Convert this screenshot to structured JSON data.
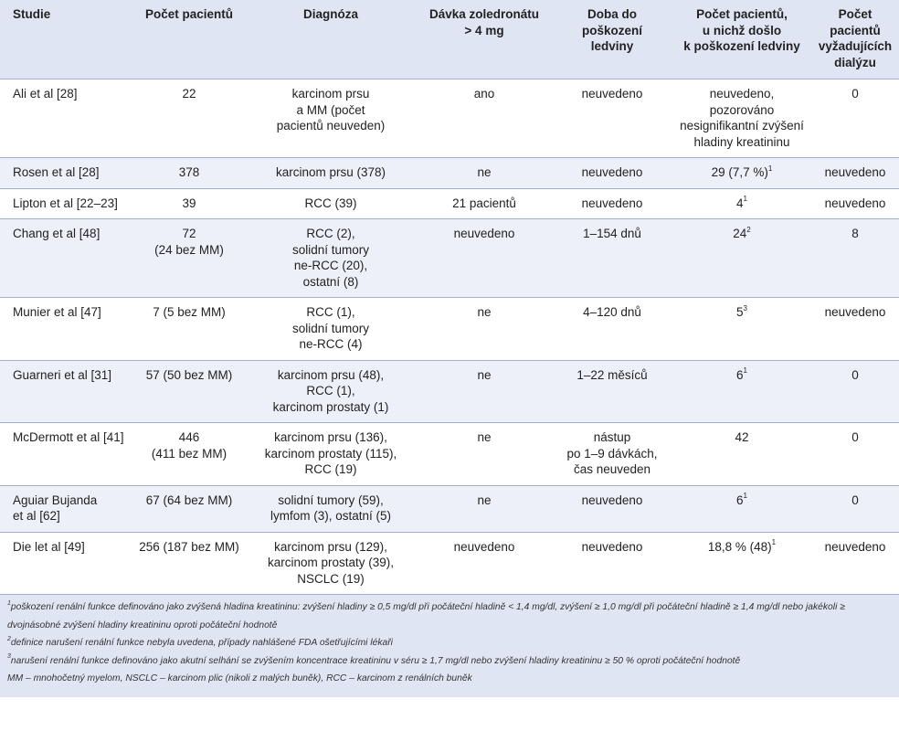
{
  "headers": [
    "Studie",
    "Počet pacientů",
    "Diagnóza",
    "Dávka zoledronátu\n> 4 mg",
    "Doba do\npoškození\nledviny",
    "Počet pacientů,\nu nichž došlo\nk poškození ledviny",
    "Počet pacientů\nvyžadujících\ndialýzu"
  ],
  "rows": [
    {
      "studie": "Ali et al [28]",
      "pocet": "22",
      "diagnoza": "karcinom prsu\na MM (počet\npacientů neuveden)",
      "davka": "ano",
      "doba": "neuvedeno",
      "poskozeni": "neuvedeno, pozorováno\nnesignifikantní zvýšení\nhladiny kreatininu",
      "poskozeni_sup": "",
      "dialyza": "0"
    },
    {
      "studie": "Rosen et al [28]",
      "pocet": "378",
      "diagnoza": "karcinom prsu (378)",
      "davka": "ne",
      "doba": "neuvedeno",
      "poskozeni": "29 (7,7 %)",
      "poskozeni_sup": "1",
      "dialyza": "neuvedeno"
    },
    {
      "studie": "Lipton et al [22–23]",
      "pocet": "39",
      "diagnoza": "RCC (39)",
      "davka": "21 pacientů",
      "doba": "neuvedeno",
      "poskozeni": "4",
      "poskozeni_sup": "1",
      "dialyza": "neuvedeno"
    },
    {
      "studie": "Chang et al [48]",
      "pocet": "72\n(24 bez MM)",
      "diagnoza": "RCC (2),\nsolidní tumory\nne-RCC (20),\nostatní  (8)",
      "davka": "neuvedeno",
      "doba": "1–154 dnů",
      "poskozeni": "24",
      "poskozeni_sup": "2",
      "dialyza": "8"
    },
    {
      "studie": "Munier et al [47]",
      "pocet": "7 (5 bez MM)",
      "diagnoza": "RCC (1),\nsolidní tumory\nne-RCC (4)",
      "davka": "ne",
      "doba": "4–120 dnů",
      "poskozeni": "5",
      "poskozeni_sup": "3",
      "dialyza": "neuvedeno"
    },
    {
      "studie": "Guarneri et al [31]",
      "pocet": "57 (50 bez MM)",
      "diagnoza": "karcinom prsu (48),\nRCC (1),\nkarcinom prostaty (1)",
      "davka": "ne",
      "doba": "1–22 měsíců",
      "poskozeni": "6",
      "poskozeni_sup": "1",
      "dialyza": "0"
    },
    {
      "studie": "McDermott et al [41]",
      "pocet": "446\n(411 bez MM)",
      "diagnoza": "karcinom prsu (136),\nkarcinom prostaty (115),\nRCC (19)",
      "davka": "ne",
      "doba": "nástup\npo 1–9 dávkách,\nčas neuveden",
      "poskozeni": "42",
      "poskozeni_sup": "",
      "dialyza": "0"
    },
    {
      "studie": "Aguiar Bujanda\net al [62]",
      "pocet": "67 (64 bez MM)",
      "diagnoza": "solidní tumory (59),\nlymfom (3), ostatní (5)",
      "davka": "ne",
      "doba": "neuvedeno",
      "poskozeni": "6",
      "poskozeni_sup": "1",
      "dialyza": "0"
    },
    {
      "studie": "Die let al [49]",
      "pocet": "256 (187 bez MM)",
      "diagnoza": "karcinom prsu (129),\nkarcinom prostaty (39),\nNSCLC (19)",
      "davka": "neuvedeno",
      "doba": "neuvedeno",
      "poskozeni": "18,8 % (48)",
      "poskozeni_sup": "1",
      "dialyza": "neuvedeno"
    }
  ],
  "footnotes": [
    {
      "sup": "1",
      "text": "poškození renální funkce definováno jako zvýšená hladina kreatininu: zvýšení hladiny ≥ 0,5 mg/dl při počáteční hladině < 1,4 mg/dl, zvýšení ≥ 1,0 mg/dl při počáteční hladině ≥ 1,4 mg/dl nebo jakékoli ≥ dvojnásobné zvýšení hladiny kreatininu oproti počáteční hodnotě"
    },
    {
      "sup": "2",
      "text": "definice narušení renální funkce nebyla uvedena, případy nahlášené FDA ošetřujícími lékaři"
    },
    {
      "sup": "3",
      "text": "narušení renální funkce definováno jako akutní selhání se zvýšením koncentrace kreatininu v séru ≥ 1,7 mg/dl nebo zvýšení hladiny kreatininu ≥ 50 % oproti počáteční hodnotě"
    },
    {
      "sup": "",
      "text": "MM – mnohočetný myelom, NSCLC – karcinom plic (nikoli z malých buněk), RCC – karcinom z renálních buněk"
    }
  ]
}
